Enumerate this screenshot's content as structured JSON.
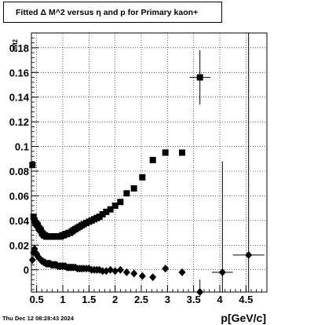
{
  "title": "Fitted Δ M^2 versus η and p for Primary kaon+",
  "timestamp": "Thu Dec 12 08:28:43 2024",
  "chart_data": {
    "type": "scatter",
    "xlabel": "p[GeV/c]",
    "ylabel": "dM2",
    "xlim": [
      0.4,
      4.9
    ],
    "ylim": [
      -0.018,
      0.192
    ],
    "xticks": [
      "0.5",
      "1",
      "1.5",
      "2",
      "2.5",
      "3",
      "3.5",
      "4",
      "4.5"
    ],
    "yticks": [
      "0",
      "0.02",
      "0.04",
      "0.06",
      "0.08",
      "0.1",
      "0.12",
      "0.14",
      "0.16",
      "0.18"
    ],
    "grid": true,
    "series": [
      {
        "marker": "square",
        "points": [
          {
            "x": 0.42,
            "y": 0.085
          },
          {
            "x": 0.44,
            "y": 0.043
          },
          {
            "x": 0.46,
            "y": 0.04
          },
          {
            "x": 0.48,
            "y": 0.038
          },
          {
            "x": 0.5,
            "y": 0.037
          },
          {
            "x": 0.52,
            "y": 0.036
          },
          {
            "x": 0.54,
            "y": 0.034
          },
          {
            "x": 0.56,
            "y": 0.033
          },
          {
            "x": 0.58,
            "y": 0.032
          },
          {
            "x": 0.6,
            "y": 0.03
          },
          {
            "x": 0.62,
            "y": 0.029
          },
          {
            "x": 0.64,
            "y": 0.028
          },
          {
            "x": 0.66,
            "y": 0.028
          },
          {
            "x": 0.68,
            "y": 0.027
          },
          {
            "x": 0.7,
            "y": 0.027
          },
          {
            "x": 0.72,
            "y": 0.027
          },
          {
            "x": 0.74,
            "y": 0.027
          },
          {
            "x": 0.76,
            "y": 0.027
          },
          {
            "x": 0.78,
            "y": 0.027
          },
          {
            "x": 0.8,
            "y": 0.027
          },
          {
            "x": 0.82,
            "y": 0.027
          },
          {
            "x": 0.84,
            "y": 0.027
          },
          {
            "x": 0.86,
            "y": 0.027
          },
          {
            "x": 0.88,
            "y": 0.027
          },
          {
            "x": 0.9,
            "y": 0.027
          },
          {
            "x": 0.93,
            "y": 0.027
          },
          {
            "x": 0.96,
            "y": 0.027
          },
          {
            "x": 0.99,
            "y": 0.028
          },
          {
            "x": 1.02,
            "y": 0.028
          },
          {
            "x": 1.05,
            "y": 0.029
          },
          {
            "x": 1.08,
            "y": 0.029
          },
          {
            "x": 1.11,
            "y": 0.03
          },
          {
            "x": 1.14,
            "y": 0.03
          },
          {
            "x": 1.17,
            "y": 0.031
          },
          {
            "x": 1.2,
            "y": 0.032
          },
          {
            "x": 1.24,
            "y": 0.033
          },
          {
            "x": 1.28,
            "y": 0.034
          },
          {
            "x": 1.32,
            "y": 0.035
          },
          {
            "x": 1.36,
            "y": 0.036
          },
          {
            "x": 1.4,
            "y": 0.037
          },
          {
            "x": 1.45,
            "y": 0.038
          },
          {
            "x": 1.5,
            "y": 0.039
          },
          {
            "x": 1.55,
            "y": 0.04
          },
          {
            "x": 1.6,
            "y": 0.041
          },
          {
            "x": 1.65,
            "y": 0.042
          },
          {
            "x": 1.7,
            "y": 0.043
          },
          {
            "x": 1.76,
            "y": 0.045
          },
          {
            "x": 1.83,
            "y": 0.047
          },
          {
            "x": 1.91,
            "y": 0.049
          },
          {
            "x": 2.0,
            "y": 0.052
          },
          {
            "x": 2.1,
            "y": 0.055
          },
          {
            "x": 2.22,
            "y": 0.062
          },
          {
            "x": 2.36,
            "y": 0.066
          },
          {
            "x": 2.52,
            "y": 0.075
          },
          {
            "x": 2.72,
            "y": 0.089
          },
          {
            "x": 2.96,
            "y": 0.095
          },
          {
            "x": 3.28,
            "y": 0.095
          },
          {
            "x": 3.62,
            "y": 0.156,
            "xerr": 0.2,
            "yerr": 0.022
          }
        ]
      },
      {
        "marker": "diamond",
        "points": [
          {
            "x": 0.42,
            "y": 0.008
          },
          {
            "x": 0.44,
            "y": 0.014
          },
          {
            "x": 0.46,
            "y": 0.017
          },
          {
            "x": 0.48,
            "y": 0.014
          },
          {
            "x": 0.5,
            "y": 0.013
          },
          {
            "x": 0.52,
            "y": 0.011
          },
          {
            "x": 0.54,
            "y": 0.01
          },
          {
            "x": 0.56,
            "y": 0.009
          },
          {
            "x": 0.58,
            "y": 0.008
          },
          {
            "x": 0.6,
            "y": 0.007
          },
          {
            "x": 0.62,
            "y": 0.007
          },
          {
            "x": 0.64,
            "y": 0.006
          },
          {
            "x": 0.66,
            "y": 0.006
          },
          {
            "x": 0.68,
            "y": 0.005
          },
          {
            "x": 0.7,
            "y": 0.005
          },
          {
            "x": 0.72,
            "y": 0.005
          },
          {
            "x": 0.74,
            "y": 0.005
          },
          {
            "x": 0.76,
            "y": 0.005
          },
          {
            "x": 0.78,
            "y": 0.004
          },
          {
            "x": 0.8,
            "y": 0.004
          },
          {
            "x": 0.82,
            "y": 0.004
          },
          {
            "x": 0.84,
            "y": 0.004
          },
          {
            "x": 0.86,
            "y": 0.004
          },
          {
            "x": 0.88,
            "y": 0.004
          },
          {
            "x": 0.9,
            "y": 0.003
          },
          {
            "x": 0.93,
            "y": 0.003
          },
          {
            "x": 0.96,
            "y": 0.003
          },
          {
            "x": 0.99,
            "y": 0.003
          },
          {
            "x": 1.02,
            "y": 0.003
          },
          {
            "x": 1.05,
            "y": 0.003
          },
          {
            "x": 1.08,
            "y": 0.002
          },
          {
            "x": 1.11,
            "y": 0.002
          },
          {
            "x": 1.14,
            "y": 0.002
          },
          {
            "x": 1.17,
            "y": 0.002
          },
          {
            "x": 1.2,
            "y": 0.002
          },
          {
            "x": 1.24,
            "y": 0.002
          },
          {
            "x": 1.28,
            "y": 0.001
          },
          {
            "x": 1.32,
            "y": 0.001
          },
          {
            "x": 1.36,
            "y": 0.001
          },
          {
            "x": 1.4,
            "y": 0.001
          },
          {
            "x": 1.45,
            "y": 0.001
          },
          {
            "x": 1.5,
            "y": 0.001
          },
          {
            "x": 1.55,
            "y": 0.0
          },
          {
            "x": 1.6,
            "y": 0.0
          },
          {
            "x": 1.65,
            "y": 0.0
          },
          {
            "x": 1.7,
            "y": 0.0
          },
          {
            "x": 1.76,
            "y": -0.001
          },
          {
            "x": 1.83,
            "y": -0.001
          },
          {
            "x": 1.91,
            "y": 0.0
          },
          {
            "x": 2.0,
            "y": -0.001
          },
          {
            "x": 2.1,
            "y": 0.0
          },
          {
            "x": 2.22,
            "y": -0.002
          },
          {
            "x": 2.36,
            "y": -0.003
          },
          {
            "x": 2.52,
            "y": -0.005
          },
          {
            "x": 2.72,
            "y": -0.006
          },
          {
            "x": 2.96,
            "y": 0.001
          },
          {
            "x": 3.28,
            "y": -0.002
          },
          {
            "x": 3.62,
            "y": -0.018,
            "xerr": 0.15,
            "yerr": 0.01
          },
          {
            "x": 4.05,
            "y": -0.002,
            "xerr": 0.2,
            "yerr": 0.09
          },
          {
            "x": 4.55,
            "y": 0.012,
            "xerr": 0.3,
            "yerr": 0.21
          }
        ]
      }
    ]
  }
}
